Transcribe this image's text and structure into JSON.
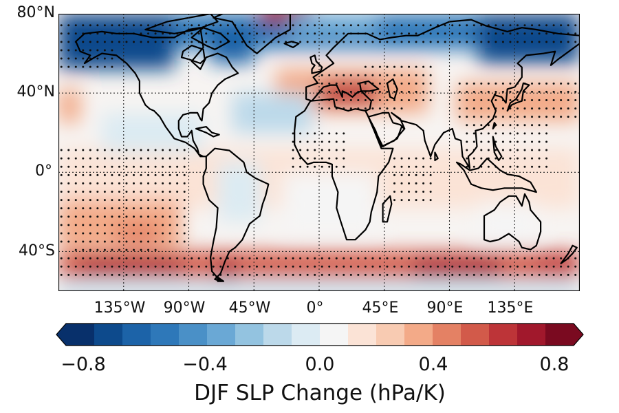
{
  "map": {
    "lat_labels": [
      "80°N",
      "40°N",
      "0°",
      "40°S"
    ],
    "lon_labels": [
      "135°W",
      "90°W",
      "45°W",
      "0°",
      "45°E",
      "90°E",
      "135°E"
    ],
    "lat_extent": [
      -60,
      80
    ],
    "lon_extent": [
      -180,
      180
    ],
    "gridlines": "dotted",
    "stippling": "significance dots"
  },
  "colorbar": {
    "title": "DJF SLP Change (hPa/K)",
    "ticks": [
      "−0.8",
      "−0.4",
      "0.0",
      "0.4",
      "0.8"
    ],
    "range": [
      -0.8,
      0.8
    ],
    "extend": "both",
    "colors": [
      "#08306b",
      "#0d4a8c",
      "#1c63a8",
      "#2e78b9",
      "#4a90c7",
      "#6aa8d5",
      "#93c3e0",
      "#bcd9ea",
      "#dcebf3",
      "#f5f5f5",
      "#fbe3d6",
      "#f8cbb2",
      "#f3aa88",
      "#e48164",
      "#d25a4a",
      "#bd3438",
      "#a1182c",
      "#7a0a20"
    ]
  }
}
